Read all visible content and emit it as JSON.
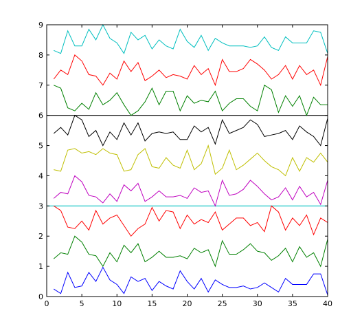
{
  "chart_data": {
    "type": "line",
    "title": "",
    "xlabel": "",
    "ylabel": "",
    "xlim": [
      0,
      40
    ],
    "ylim": [
      0,
      9
    ],
    "xticks": [
      0,
      5,
      10,
      15,
      20,
      25,
      30,
      35,
      40
    ],
    "yticks": [
      0,
      1,
      2,
      3,
      4,
      5,
      6,
      7,
      8,
      9
    ],
    "grid": false,
    "legend": "none",
    "x": [
      1,
      2,
      3,
      4,
      5,
      6,
      7,
      8,
      9,
      10,
      11,
      12,
      13,
      14,
      15,
      16,
      17,
      18,
      19,
      20,
      21,
      22,
      23,
      24,
      25,
      26,
      27,
      28,
      29,
      30,
      31,
      32,
      33,
      34,
      35,
      36,
      37,
      38,
      39,
      40
    ],
    "reference_lines": [
      {
        "y": 3,
        "color": "#00bfbf"
      },
      {
        "y": 6,
        "color": "#000000"
      }
    ],
    "series": [
      {
        "color": "#0000ff",
        "values": [
          0.25,
          0.1,
          0.8,
          0.3,
          0.35,
          0.8,
          0.5,
          0.97,
          0.55,
          0.4,
          0.1,
          0.65,
          0.5,
          0.6,
          0.2,
          0.5,
          0.35,
          0.25,
          0.85,
          0.5,
          0.25,
          0.6,
          0.15,
          0.55,
          0.4,
          0.3,
          0.3,
          0.35,
          0.25,
          0.3,
          0.45,
          0.3,
          0.15,
          0.6,
          0.4,
          0.4,
          0.4,
          0.75,
          0.75,
          0.05
        ]
      },
      {
        "color": "#008000",
        "values": [
          1.25,
          1.45,
          1.4,
          2.0,
          1.8,
          1.4,
          1.35,
          1.0,
          1.45,
          1.15,
          1.7,
          1.45,
          1.75,
          1.15,
          1.3,
          1.5,
          1.3,
          1.3,
          1.35,
          1.25,
          1.6,
          1.45,
          1.55,
          1.0,
          1.85,
          1.4,
          1.4,
          1.55,
          1.75,
          1.5,
          1.45,
          1.2,
          1.35,
          1.6,
          1.15,
          1.65,
          1.3,
          1.45,
          1.0,
          1.9
        ]
      },
      {
        "color": "#ff0000",
        "values": [
          3.0,
          2.85,
          2.3,
          2.25,
          2.5,
          2.2,
          2.85,
          2.4,
          2.6,
          2.7,
          2.35,
          2.0,
          2.25,
          2.4,
          2.95,
          2.5,
          2.85,
          2.8,
          2.25,
          2.7,
          2.4,
          2.55,
          2.45,
          2.8,
          2.2,
          2.4,
          2.6,
          2.6,
          2.35,
          2.45,
          2.15,
          3.0,
          2.8,
          2.2,
          2.6,
          2.35,
          2.7,
          2.05,
          2.6,
          2.45
        ]
      },
      {
        "color": "#bf00bf",
        "values": [
          3.25,
          3.45,
          3.4,
          4.0,
          3.8,
          3.35,
          3.3,
          3.1,
          3.4,
          3.15,
          3.7,
          3.5,
          3.75,
          3.15,
          3.3,
          3.5,
          3.3,
          3.3,
          3.35,
          3.25,
          3.6,
          3.45,
          3.5,
          3.0,
          3.85,
          3.35,
          3.4,
          3.55,
          3.85,
          3.65,
          3.4,
          3.2,
          3.3,
          3.6,
          3.2,
          3.65,
          3.3,
          3.45,
          3.05,
          3.85
        ]
      },
      {
        "color": "#bfbf00",
        "values": [
          4.2,
          4.15,
          4.85,
          4.9,
          4.75,
          4.8,
          4.7,
          4.9,
          4.75,
          4.7,
          4.15,
          4.2,
          4.7,
          4.9,
          4.3,
          4.25,
          4.6,
          4.35,
          4.25,
          4.85,
          4.2,
          4.4,
          5.0,
          4.05,
          4.25,
          4.85,
          4.2,
          4.35,
          4.55,
          4.75,
          4.5,
          4.3,
          4.2,
          4.0,
          4.6,
          4.15,
          4.6,
          4.45,
          4.75,
          4.45
        ]
      },
      {
        "color": "#000000",
        "values": [
          5.4,
          5.6,
          5.35,
          6.0,
          5.85,
          5.3,
          5.5,
          5.0,
          5.45,
          5.2,
          5.75,
          5.35,
          5.75,
          5.15,
          5.4,
          5.45,
          5.4,
          5.45,
          5.2,
          5.2,
          5.65,
          5.45,
          5.6,
          5.05,
          5.85,
          5.4,
          5.5,
          5.6,
          5.85,
          5.7,
          5.3,
          5.35,
          5.4,
          5.5,
          5.2,
          5.65,
          5.45,
          5.3,
          5.0,
          5.9
        ]
      },
      {
        "color": "#008000",
        "values": [
          7.0,
          6.9,
          6.25,
          6.15,
          6.4,
          6.2,
          6.75,
          6.35,
          6.5,
          6.75,
          6.35,
          6.0,
          6.15,
          6.45,
          6.9,
          6.35,
          6.8,
          6.8,
          6.15,
          6.65,
          6.4,
          6.5,
          6.45,
          6.8,
          6.15,
          6.4,
          6.55,
          6.55,
          6.3,
          6.15,
          7.0,
          6.85,
          6.1,
          6.65,
          6.3,
          6.65,
          6.0,
          6.6,
          6.35,
          6.35
        ]
      },
      {
        "color": "#ff0000",
        "values": [
          7.2,
          7.5,
          7.35,
          8.0,
          7.8,
          7.35,
          7.3,
          7.0,
          7.4,
          7.2,
          7.8,
          7.45,
          7.75,
          7.15,
          7.3,
          7.5,
          7.25,
          7.35,
          7.3,
          7.2,
          7.65,
          7.35,
          7.55,
          7.0,
          7.85,
          7.45,
          7.45,
          7.55,
          7.85,
          7.7,
          7.5,
          7.2,
          7.35,
          7.65,
          7.2,
          7.65,
          7.35,
          7.5,
          7.0,
          7.95
        ]
      },
      {
        "color": "#00bfbf",
        "values": [
          8.15,
          8.05,
          8.8,
          8.3,
          8.3,
          8.85,
          8.5,
          9.0,
          8.55,
          8.4,
          8.05,
          8.75,
          8.5,
          8.65,
          8.2,
          8.5,
          8.3,
          8.2,
          8.85,
          8.45,
          8.25,
          8.65,
          8.15,
          8.55,
          8.4,
          8.3,
          8.3,
          8.3,
          8.25,
          8.3,
          8.6,
          8.25,
          8.15,
          8.6,
          8.4,
          8.4,
          8.4,
          8.8,
          8.75,
          8.05
        ]
      }
    ]
  }
}
